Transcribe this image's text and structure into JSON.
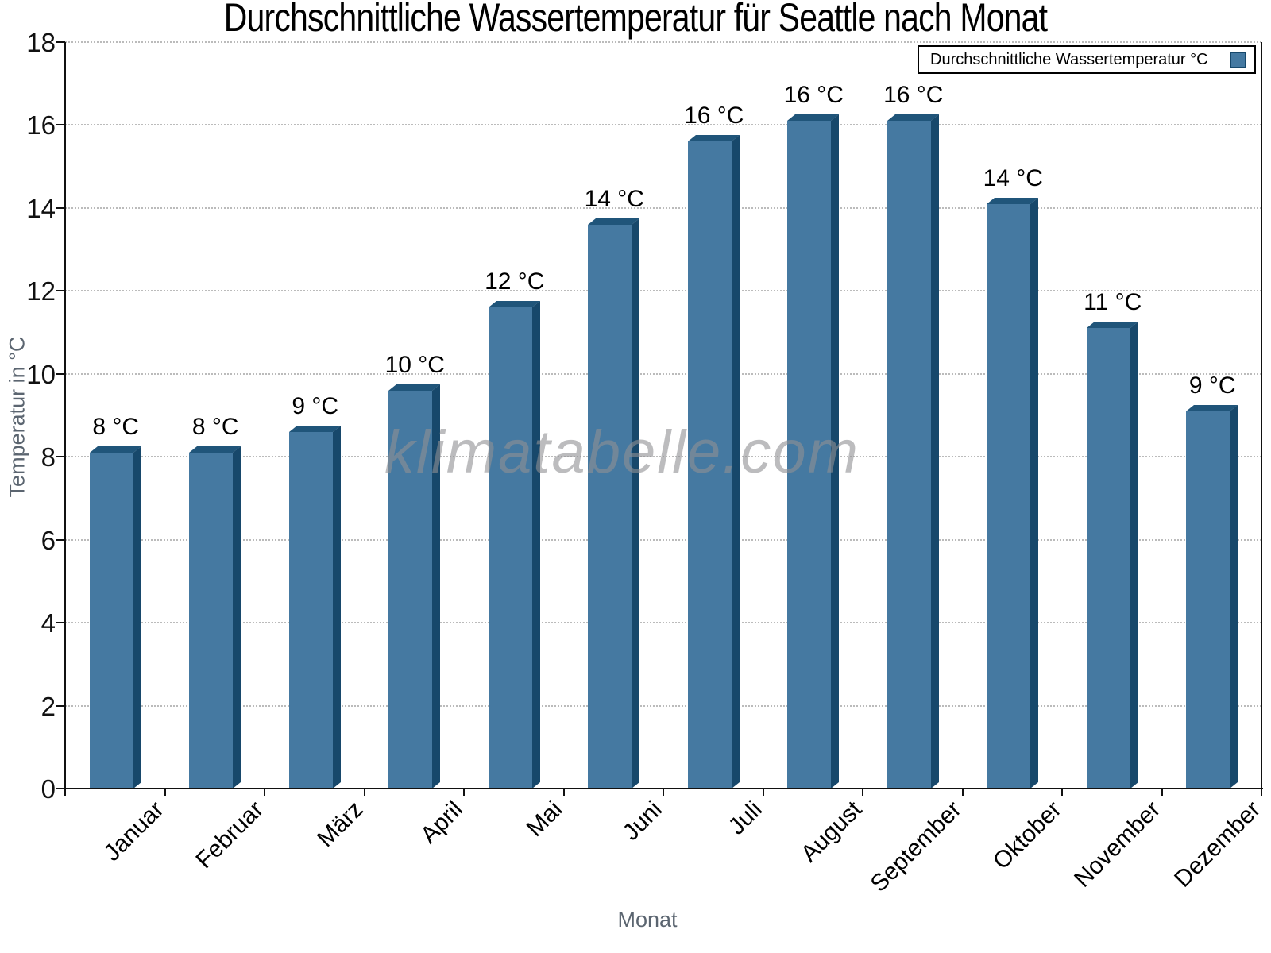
{
  "page": {
    "watermark": "klimatabelle.com"
  },
  "chart_data": {
    "type": "bar",
    "title": "Durchschnittliche Wassertemperatur für Seattle nach Monat",
    "xlabel": "Monat",
    "ylabel": "Temperatur in °C",
    "legend": [
      "Durchschnittliche Wassertemperatur °C"
    ],
    "legend_position": "top-right",
    "grid": "horizontal-dotted",
    "categories": [
      "Januar",
      "Februar",
      "März",
      "April",
      "Mai",
      "Juni",
      "Juli",
      "August",
      "September",
      "Oktober",
      "November",
      "Dezember"
    ],
    "values": [
      8.1,
      8.1,
      8.6,
      9.6,
      11.6,
      13.6,
      15.6,
      16.1,
      16.1,
      14.1,
      11.1,
      9.1
    ],
    "bar_labels": [
      "8 °C",
      "8 °C",
      "9 °C",
      "10 °C",
      "12 °C",
      "14 °C",
      "16 °C",
      "16 °C",
      "16 °C",
      "14 °C",
      "11 °C",
      "9 °C"
    ],
    "ylim": [
      0,
      18
    ],
    "yticks": [
      0,
      2,
      4,
      6,
      8,
      10,
      12,
      14,
      16,
      18
    ],
    "colors": {
      "bar_front": "#4579A1",
      "bar_top": "#20557A",
      "bar_side": "#17486B",
      "grid": "#bbbbbb",
      "axis": "#111111",
      "muted_text": "#5b6570",
      "watermark": "#909194"
    }
  }
}
